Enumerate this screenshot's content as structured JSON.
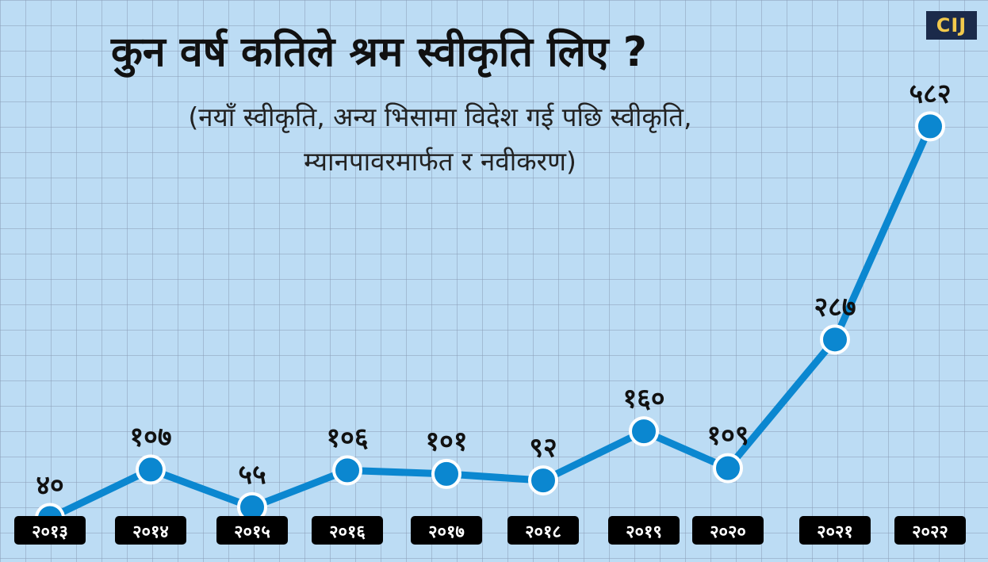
{
  "title": "कुन वर्ष कतिले श्रम स्वीकृति लिए ?",
  "subtitle_line1": "(नयाँ स्वीकृति, अन्य भिसामा विदेश गई पछि स्वीकृति,",
  "subtitle_line2": "म्यानपावरमार्फत र नवीकरण)",
  "logo_text": "CIJ",
  "colors": {
    "line": "#0b87d0",
    "marker_fill": "#0b87d0",
    "marker_stroke": "#ffffff",
    "label_bg": "#000000",
    "label_text": "#ffffff"
  },
  "chart_data": {
    "type": "line",
    "categories": [
      "२०१३",
      "२०१४",
      "२०१५",
      "२०१६",
      "२०१७",
      "२०१८",
      "२०१९",
      "२०२०",
      "२०२१",
      "२०२२"
    ],
    "values": [
      40,
      107,
      55,
      106,
      101,
      92,
      160,
      109,
      287,
      582
    ],
    "value_labels": [
      "४०",
      "१०७",
      "५५",
      "१०६",
      "१०१",
      "९२",
      "१६०",
      "१०९",
      "२८७",
      "५८२"
    ],
    "xlabel": "",
    "ylabel": "",
    "ylim": [
      0,
      620
    ],
    "grid": true
  }
}
